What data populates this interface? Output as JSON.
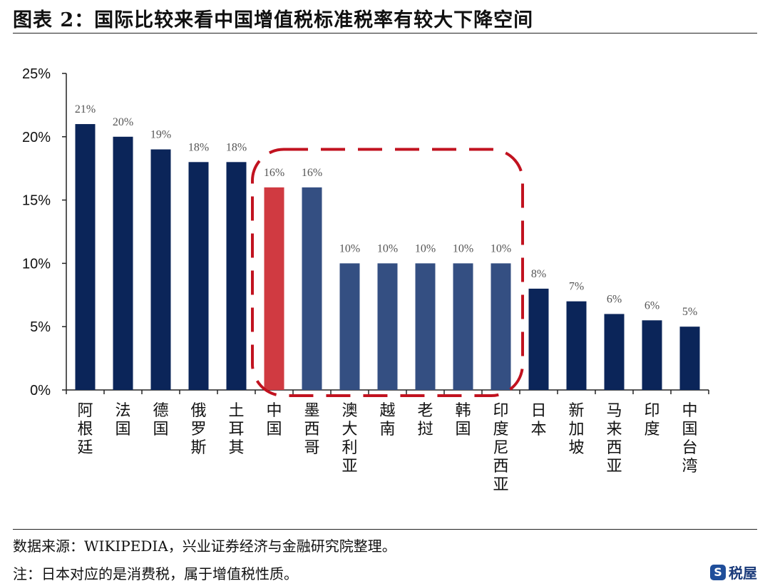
{
  "title": "图表 2：国际比较来看中国增值税标准税率有较大下降空间",
  "source": "数据来源：WIKIPEDIA，兴业证券经济与金融研究院整理。",
  "note": "注：日本对应的是消费税，属于增值税性质。",
  "watermark": "税屋",
  "chart_data": {
    "type": "bar",
    "title": "",
    "xlabel": "",
    "ylabel": "",
    "ylim": [
      0,
      25
    ],
    "yticks": [
      "0%",
      "5%",
      "10%",
      "15%",
      "20%",
      "25%"
    ],
    "grid": false,
    "categories": [
      "阿根廷",
      "法国",
      "德国",
      "俄罗斯",
      "土耳其",
      "中国",
      "墨西哥",
      "澳大利亚",
      "越南",
      "老挝",
      "韩国",
      "印度尼西亚",
      "日本",
      "新加坡",
      "马来西亚",
      "印度",
      "中国台湾"
    ],
    "values": [
      21,
      20,
      19,
      18,
      18,
      16,
      16,
      10,
      10,
      10,
      10,
      10,
      8,
      7,
      6,
      5.5,
      5
    ],
    "data_labels": [
      "21%",
      "20%",
      "19%",
      "18%",
      "18%",
      "16%",
      "16%",
      "10%",
      "10%",
      "10%",
      "10%",
      "10%",
      "8%",
      "7%",
      "6%",
      "6%",
      "5%"
    ],
    "colors": {
      "default": "#0b2559",
      "highlight_group": "#344f82",
      "china": "#d03a41",
      "box": "#c1121f"
    },
    "highlight": "中国",
    "grouped_categories": [
      "墨西哥",
      "澳大利亚",
      "越南",
      "老挝",
      "韩国",
      "印度尼西亚"
    ]
  }
}
